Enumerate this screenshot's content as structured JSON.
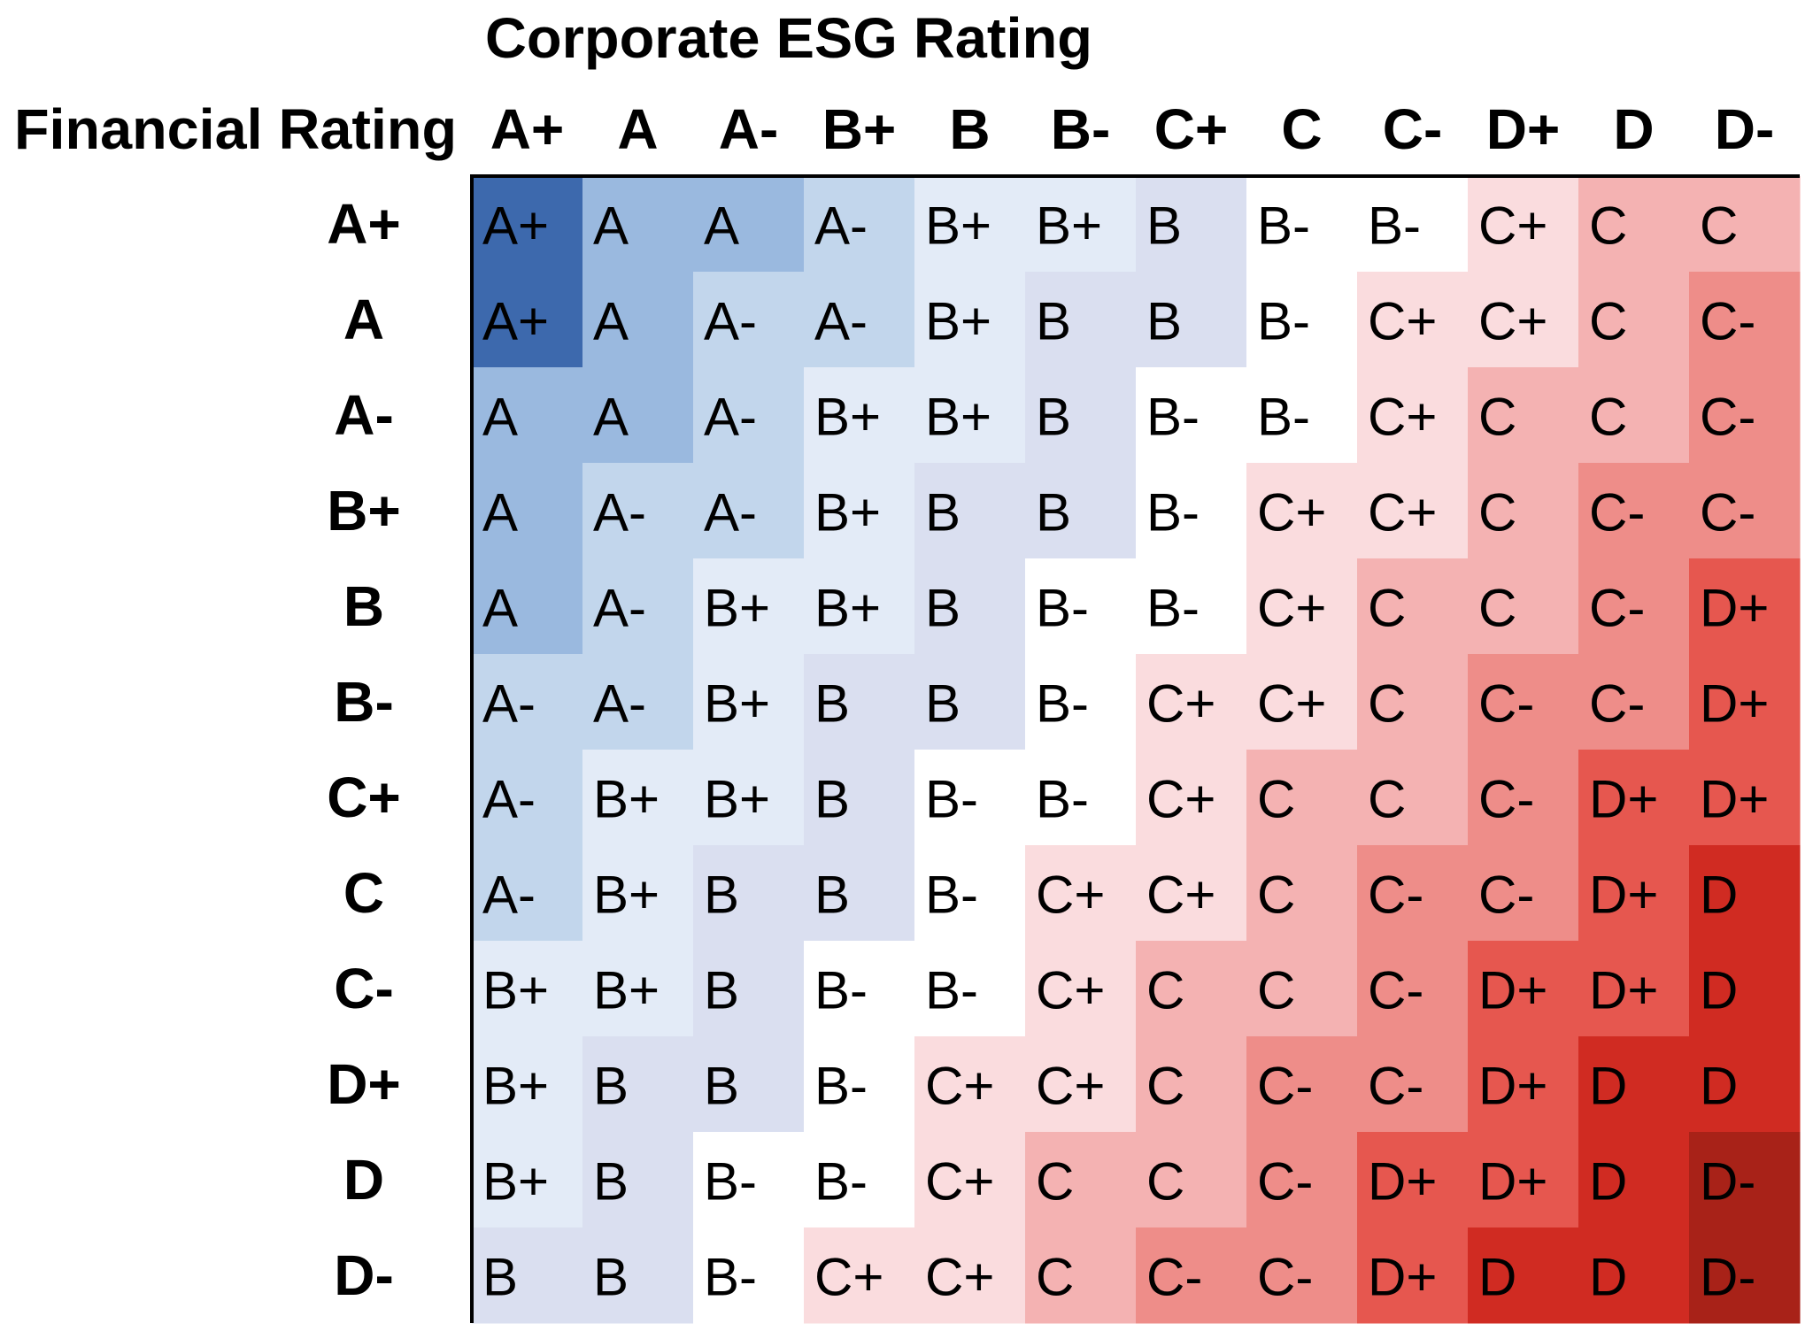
{
  "table": {
    "title": "Corporate ESG Rating",
    "row_header_title": "Financial Rating",
    "columns": [
      "A+",
      "A",
      "A-",
      "B+",
      "B",
      "B-",
      "C+",
      "C",
      "C-",
      "D+",
      "D",
      "D-"
    ],
    "colors": [
      "#3d69ad",
      "#9ab9df",
      "#c2d6ec",
      "#e3ebf7",
      "#dadff0",
      "#ffffff",
      "#fadcde",
      "#f4b2b2",
      "#ee8d89",
      "#e6574f",
      "#d02b22",
      "#a82218"
    ],
    "rows": [
      {
        "label": "A+",
        "cells": [
          "A+",
          "A",
          "A",
          "A-",
          "B+",
          "B+",
          "B",
          "B-",
          "B-",
          "C+",
          "C",
          "C"
        ]
      },
      {
        "label": "A",
        "cells": [
          "A+",
          "A",
          "A-",
          "A-",
          "B+",
          "B",
          "B",
          "B-",
          "C+",
          "C+",
          "C",
          "C-"
        ]
      },
      {
        "label": "A-",
        "cells": [
          "A",
          "A",
          "A-",
          "B+",
          "B+",
          "B",
          "B-",
          "B-",
          "C+",
          "C",
          "C",
          "C-"
        ]
      },
      {
        "label": "B+",
        "cells": [
          "A",
          "A-",
          "A-",
          "B+",
          "B",
          "B",
          "B-",
          "C+",
          "C+",
          "C",
          "C-",
          "C-"
        ]
      },
      {
        "label": "B",
        "cells": [
          "A",
          "A-",
          "B+",
          "B+",
          "B",
          "B-",
          "B-",
          "C+",
          "C",
          "C",
          "C-",
          "D+"
        ]
      },
      {
        "label": "B-",
        "cells": [
          "A-",
          "A-",
          "B+",
          "B",
          "B",
          "B-",
          "C+",
          "C+",
          "C",
          "C-",
          "C-",
          "D+"
        ]
      },
      {
        "label": "C+",
        "cells": [
          "A-",
          "B+",
          "B+",
          "B",
          "B-",
          "B-",
          "C+",
          "C",
          "C",
          "C-",
          "D+",
          "D+"
        ]
      },
      {
        "label": "C",
        "cells": [
          "A-",
          "B+",
          "B",
          "B",
          "B-",
          "C+",
          "C+",
          "C",
          "C-",
          "C-",
          "D+",
          "D"
        ]
      },
      {
        "label": "C-",
        "cells": [
          "B+",
          "B+",
          "B",
          "B-",
          "B-",
          "C+",
          "C",
          "C",
          "C-",
          "D+",
          "D+",
          "D"
        ]
      },
      {
        "label": "D+",
        "cells": [
          "B+",
          "B",
          "B",
          "B-",
          "C+",
          "C+",
          "C",
          "C-",
          "C-",
          "D+",
          "D",
          "D"
        ]
      },
      {
        "label": "D",
        "cells": [
          "B+",
          "B",
          "B-",
          "B-",
          "C+",
          "C",
          "C",
          "C-",
          "D+",
          "D+",
          "D",
          "D-"
        ]
      },
      {
        "label": "D-",
        "cells": [
          "B",
          "B",
          "B-",
          "C+",
          "C+",
          "C",
          "C-",
          "C-",
          "D+",
          "D",
          "D",
          "D-"
        ]
      }
    ]
  }
}
